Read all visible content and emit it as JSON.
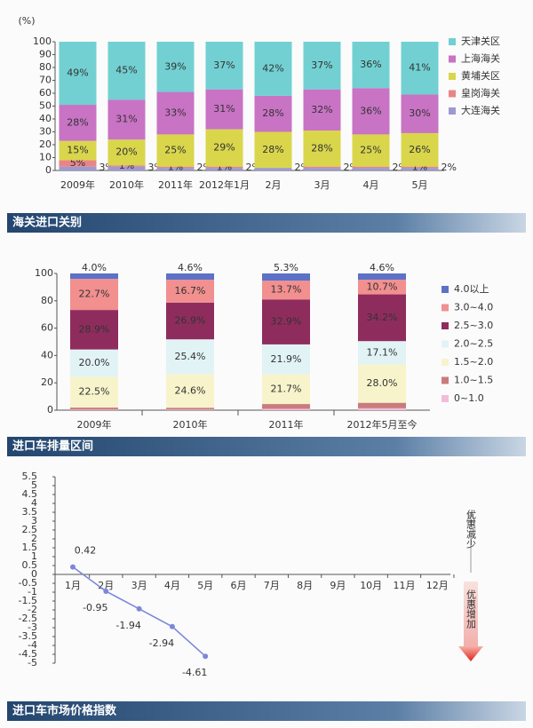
{
  "chart_data": [
    {
      "type": "stacked_bar",
      "title": "海关进口关别",
      "ylabel": "(%)",
      "categories": [
        "2009年",
        "2010年",
        "2011年",
        "2012年1月",
        "2月",
        "3月",
        "4月",
        "5月"
      ],
      "ylim": [
        0,
        100
      ],
      "yticks": [
        0,
        10,
        20,
        30,
        40,
        50,
        60,
        70,
        80,
        90,
        100
      ],
      "legend": "right",
      "series": [
        {
          "name": "大连海关",
          "color": "#9d9ad2",
          "values": [
            3,
            3,
            2,
            2,
            2,
            2,
            2,
            2
          ],
          "value_labels": [
            "3%",
            "3%",
            "2%",
            "2%",
            "2%",
            "2%",
            "2%",
            "2%"
          ]
        },
        {
          "name": "皇岗海关",
          "color": "#e98585",
          "values": [
            5,
            1,
            1,
            1,
            0,
            1,
            1,
            1
          ],
          "value_labels": [
            "5%",
            "1%",
            "1%",
            "1%",
            null,
            null,
            null,
            "1%"
          ]
        },
        {
          "name": "黄埔关区",
          "color": "#d9d64c",
          "values": [
            15,
            20,
            25,
            29,
            28,
            28,
            25,
            26
          ],
          "value_labels": [
            "15%",
            "20%",
            "25%",
            "29%",
            "28%",
            "28%",
            "25%",
            "26%"
          ]
        },
        {
          "name": "上海海关",
          "color": "#c873c4",
          "values": [
            28,
            31,
            33,
            31,
            28,
            32,
            36,
            30
          ],
          "value_labels": [
            "28%",
            "31%",
            "33%",
            "31%",
            "28%",
            "32%",
            "36%",
            "30%"
          ]
        },
        {
          "name": "天津关区",
          "color": "#72d0d2",
          "values": [
            49,
            45,
            39,
            37,
            42,
            37,
            36,
            41
          ],
          "value_labels": [
            "49%",
            "45%",
            "39%",
            "37%",
            "42%",
            "37%",
            "36%",
            "41%"
          ]
        }
      ]
    },
    {
      "type": "stacked_bar",
      "title": "进口车排量区间",
      "categories": [
        "2009年",
        "2010年",
        "2011年",
        "2012年5月至今"
      ],
      "ylim": [
        0,
        100
      ],
      "yticks": [
        0,
        20,
        40,
        60,
        80,
        100
      ],
      "legend": "right",
      "series": [
        {
          "name": "0~1.0",
          "color": "#f2bcdc",
          "values": [
            0.4,
            0.4,
            1.0,
            1.4
          ]
        },
        {
          "name": "1.0~1.5",
          "color": "#c97c7c",
          "values": [
            1.5,
            1.4,
            3.5,
            4.0
          ]
        },
        {
          "name": "1.5~2.0",
          "color": "#f7f4cc",
          "values": [
            22.5,
            24.6,
            21.7,
            28.0
          ],
          "value_labels": [
            "22.5%",
            "24.6%",
            "21.7%",
            "28.0%"
          ]
        },
        {
          "name": "2.0~2.5",
          "color": "#e2f3f5",
          "values": [
            20.0,
            25.4,
            21.9,
            17.1
          ],
          "value_labels": [
            "20.0%",
            "25.4%",
            "21.9%",
            "17.1%"
          ]
        },
        {
          "name": "2.5~3.0",
          "color": "#8f2c5e",
          "values": [
            28.9,
            26.9,
            32.9,
            34.2
          ],
          "value_labels": [
            "28.9%",
            "26.9%",
            "32.9%",
            "34.2%"
          ]
        },
        {
          "name": "3.0~4.0",
          "color": "#f28f8f",
          "values": [
            22.7,
            16.7,
            13.7,
            10.7
          ],
          "value_labels": [
            "22.7%",
            "16.7%",
            "13.7%",
            "10.7%"
          ]
        },
        {
          "name": "4.0以上",
          "color": "#5d71c6",
          "values": [
            4.0,
            4.6,
            5.3,
            4.6
          ],
          "value_labels": [
            "4.0%",
            "4.6%",
            "5.3%",
            "4.6%"
          ]
        }
      ]
    },
    {
      "type": "line",
      "title": "进口车市场价格指数",
      "categories": [
        "1月",
        "2月",
        "3月",
        "4月",
        "5月",
        "6月",
        "7月",
        "8月",
        "9月",
        "10月",
        "11月",
        "12月"
      ],
      "values": [
        0.42,
        -0.95,
        -1.94,
        -2.94,
        -4.61,
        null,
        null,
        null,
        null,
        null,
        null,
        null
      ],
      "color": "#7d87d9",
      "ylim": [
        -5,
        5.5
      ],
      "yticks": [
        -5,
        -4.5,
        -4,
        -3.5,
        -3,
        -2.5,
        -2,
        -1.5,
        -1,
        -0.5,
        0,
        0.5,
        1,
        1.5,
        2,
        2.5,
        3,
        3.5,
        4,
        4.5,
        5,
        5.5
      ],
      "annotations": [
        "优惠减少",
        "优惠增加"
      ]
    }
  ]
}
